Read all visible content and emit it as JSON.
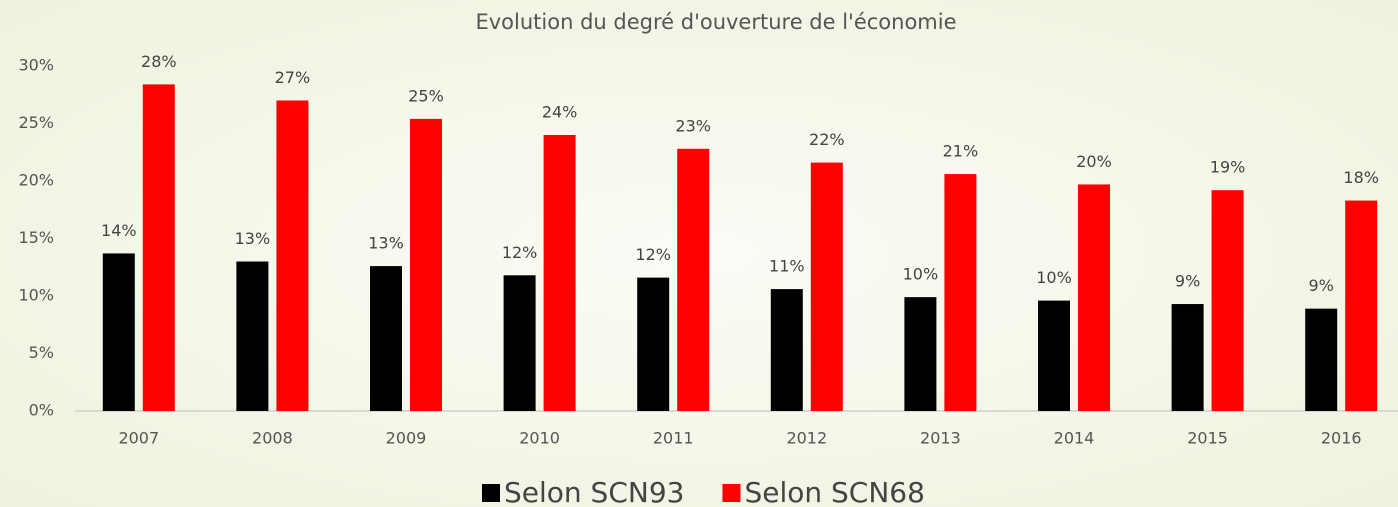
{
  "chart_data": {
    "type": "bar",
    "title": "Evolution du degré d'ouverture de l'économie",
    "categories": [
      "2007",
      "2008",
      "2009",
      "2010",
      "2011",
      "2012",
      "2013",
      "2014",
      "2015",
      "2016"
    ],
    "series": [
      {
        "name": "Selon SCN93",
        "color": "#000000",
        "values": [
          13.7,
          13.0,
          12.6,
          11.8,
          11.6,
          10.6,
          9.9,
          9.6,
          9.3,
          8.9
        ],
        "value_labels": [
          "14%",
          "13%",
          "13%",
          "12%",
          "12%",
          "11%",
          "10%",
          "10%",
          "9%",
          "9%"
        ]
      },
      {
        "name": "Selon SCN68",
        "color": "#ff0000",
        "values": [
          28.4,
          27.0,
          25.4,
          24.0,
          22.8,
          21.6,
          20.6,
          19.7,
          19.2,
          18.3
        ],
        "value_labels": [
          "28%",
          "27%",
          "25%",
          "24%",
          "23%",
          "22%",
          "21%",
          "20%",
          "19%",
          "18%"
        ]
      }
    ],
    "ylim": [
      0,
      30
    ],
    "yticks": [
      {
        "value": 0,
        "label": "0%"
      },
      {
        "value": 5,
        "label": "5%"
      },
      {
        "value": 10,
        "label": "10%"
      },
      {
        "value": 15,
        "label": "15%"
      },
      {
        "value": 20,
        "label": "20%"
      },
      {
        "value": 25,
        "label": "25%"
      },
      {
        "value": 30,
        "label": "30%"
      }
    ],
    "grid": false,
    "legend": "bottom"
  }
}
